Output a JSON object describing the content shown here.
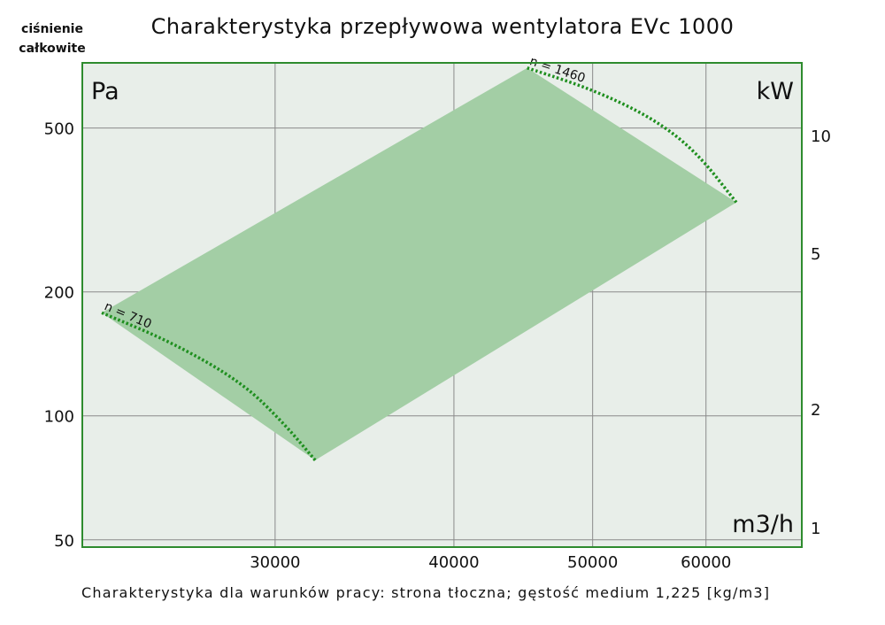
{
  "chart_data": {
    "type": "area",
    "title": "Charakterystyka przepływowa wentylatora EVc 1000",
    "y_axis_caption": [
      "ciśnienie",
      "całkowite"
    ],
    "footer_note": "Charakterystyka dla warunków pracy: strona tłoczna; gęstość medium 1,225 [kg/m3]",
    "x_unit": "m3/h",
    "y_unit_left": "Pa",
    "y_unit_right": "kW",
    "x_scale": "log",
    "y_scale": "log",
    "xlim": [
      22000,
      70000
    ],
    "ylim": [
      48,
      720
    ],
    "x_ticks": [
      30000,
      40000,
      50000,
      60000
    ],
    "x_tick_labels": [
      "30000",
      "40000",
      "50000",
      "60000"
    ],
    "y_ticks_left": [
      50,
      100,
      200,
      500
    ],
    "y_tick_labels_left": [
      "50",
      "100",
      "200",
      "500"
    ],
    "y_ticks_right_labels": [
      "1",
      "2",
      "5",
      "10"
    ],
    "grid": true,
    "colors": {
      "fill": "#a3cea5",
      "curve": "#1f8f1f",
      "frame": "#2e8b2e",
      "plot_bg": "#e8eee9",
      "grid": "#8a8a8a"
    },
    "operating_region": [
      [
        22700,
        178
      ],
      [
        32000,
        78
      ],
      [
        63000,
        330
      ],
      [
        45000,
        700
      ]
    ],
    "curves": [
      {
        "label": "n = 710",
        "points": [
          [
            22700,
            178
          ],
          [
            25500,
            150
          ],
          [
            28500,
            120
          ],
          [
            30500,
            95
          ],
          [
            32000,
            78
          ]
        ]
      },
      {
        "label": "n = 1460",
        "points": [
          [
            45000,
            700
          ],
          [
            50000,
            620
          ],
          [
            55000,
            530
          ],
          [
            59000,
            440
          ],
          [
            63000,
            330
          ]
        ]
      }
    ]
  }
}
